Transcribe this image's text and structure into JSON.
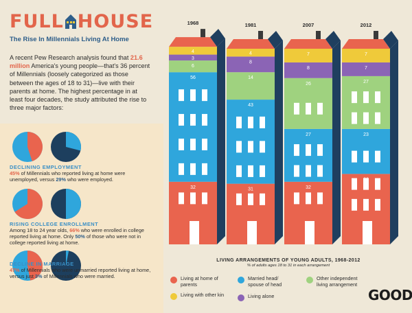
{
  "header": {
    "title_part1": "FULL",
    "title_part2": "HOUSE",
    "subtitle": "The Rise In Millennials Living At Home"
  },
  "intro": {
    "text_a": "A recent Pew Research analysis found that ",
    "highlight": "21.6 million",
    "text_b": " America's young people—that's 36 percent of Millennials (loosely categorized as those between the ages of 18 to 31)—live with their parents at home. The highest percentage in at least four decades, the study attributed the rise to three major factors:"
  },
  "factors": [
    {
      "title": "Declining Employment",
      "pies": [
        45,
        29
      ],
      "t1": "45%",
      "t2": " of Millennials who reported living at home were unemployed, versus ",
      "t3": "29%",
      "t4": " who were employed."
    },
    {
      "title": "Rising College Enrollment",
      "pies": [
        66,
        50
      ],
      "t1": "Among 18 to 24 year olds, ",
      "t2": "66%",
      "t3": " who were enrolled in college reported living at home. Only ",
      "t4": "50%",
      "t5": " of those who were not in college reported living at home."
    },
    {
      "title": "Decline In Marriage",
      "pies": [
        47,
        3
      ],
      "t1": "47%",
      "t2": " of Millennials who were unmarried reported living at home, versus just ",
      "t3": "3%",
      "t4": " of Millennials who were married."
    }
  ],
  "colors": {
    "parents": "#e9644e",
    "head": "#2fa6dc",
    "independent": "#9fd27f",
    "kin": "#efca3a",
    "alone": "#8b64b5",
    "pie_light": "#2fa6dc",
    "pie_dark": "#1d3f5e"
  },
  "chart_data": {
    "type": "bar",
    "title": "LIVING ARRANGEMENTS OF YOUNG ADULTS, 1968-2012",
    "subtitle": "% of adults ages 18 to 31 in each arrangement",
    "categories": [
      "1968",
      "1981",
      "2007",
      "2012"
    ],
    "stacked": true,
    "series": [
      {
        "name": "Living at home of parents",
        "key": "parents",
        "values": [
          32,
          31,
          32,
          36
        ]
      },
      {
        "name": "Married head/ spouse of head",
        "key": "head",
        "values": [
          56,
          43,
          27,
          23
        ]
      },
      {
        "name": "Other independent living arrangement",
        "key": "independent",
        "values": [
          6,
          14,
          26,
          27
        ]
      },
      {
        "name": "Living alone",
        "key": "alone",
        "values": [
          3,
          8,
          8,
          7
        ]
      },
      {
        "name": "Living with other kin",
        "key": "kin",
        "values": [
          4,
          4,
          7,
          7
        ]
      }
    ]
  },
  "legend": [
    {
      "key": "parents",
      "label": "Living at home of parents"
    },
    {
      "key": "head",
      "label": "Married head/ spouse of head"
    },
    {
      "key": "independent",
      "label": "Other independent living arrangement"
    },
    {
      "key": "kin",
      "label": "Living with other kin"
    },
    {
      "key": "alone",
      "label": "Living alone"
    }
  ],
  "brand": "GOOD"
}
